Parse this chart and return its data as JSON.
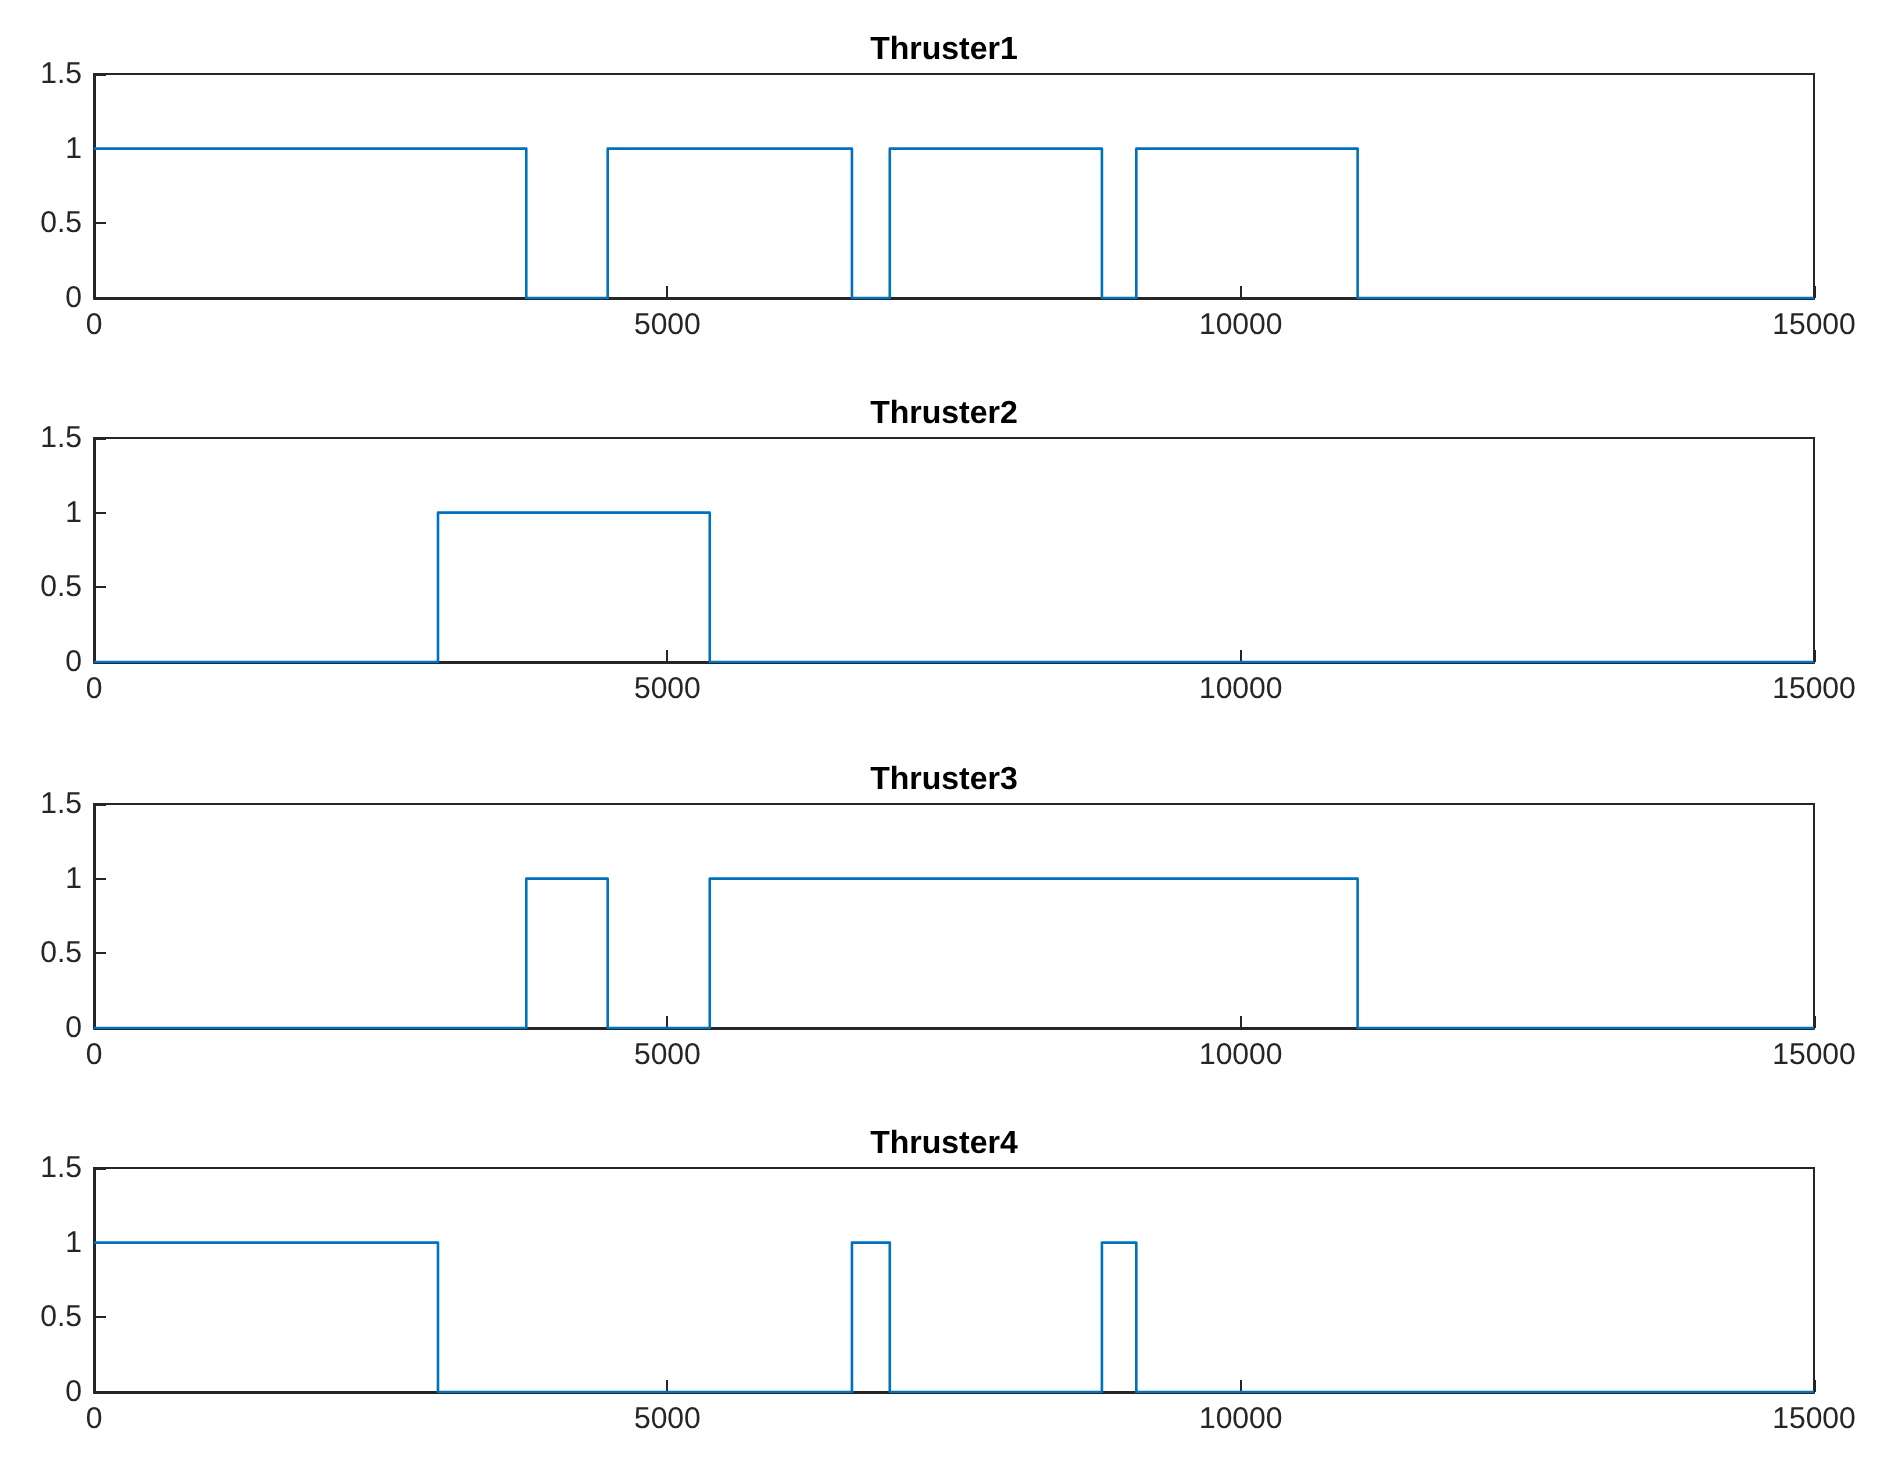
{
  "chart_data": [
    {
      "type": "step",
      "title": "Thruster1",
      "marker": "none",
      "xlim": [
        0,
        15000
      ],
      "xticks": [
        0,
        5000,
        10000,
        15000
      ],
      "ylim": [
        0,
        1.5
      ],
      "yticks": [
        0,
        0.5,
        1,
        1.5
      ],
      "series": [
        {
          "color": "#0072bd",
          "x": [
            0,
            3770,
            4480,
            6610,
            6940,
            8790,
            9090,
            11020,
            15000
          ],
          "values": [
            1,
            0,
            1,
            0,
            1,
            0,
            1,
            0,
            0
          ]
        }
      ]
    },
    {
      "type": "step",
      "title": "Thruster2",
      "marker": "none",
      "xlim": [
        0,
        15000
      ],
      "xticks": [
        0,
        5000,
        10000,
        15000
      ],
      "ylim": [
        0,
        1.5
      ],
      "yticks": [
        0,
        0.5,
        1,
        1.5
      ],
      "series": [
        {
          "color": "#0072bd",
          "x": [
            0,
            3000,
            5370,
            15000
          ],
          "values": [
            0,
            1,
            0,
            0
          ]
        }
      ]
    },
    {
      "type": "step",
      "title": "Thruster3",
      "marker": "none",
      "xlim": [
        0,
        15000
      ],
      "xticks": [
        0,
        5000,
        10000,
        15000
      ],
      "ylim": [
        0,
        1.5
      ],
      "yticks": [
        0,
        0.5,
        1,
        1.5
      ],
      "series": [
        {
          "color": "#0072bd",
          "x": [
            0,
            3770,
            4480,
            5370,
            11020,
            15000
          ],
          "values": [
            0,
            1,
            0,
            1,
            0,
            0
          ]
        }
      ]
    },
    {
      "type": "step",
      "title": "Thruster4",
      "marker": "none",
      "xlim": [
        0,
        15000
      ],
      "xticks": [
        0,
        5000,
        10000,
        15000
      ],
      "ylim": [
        0,
        1.5
      ],
      "yticks": [
        0,
        0.5,
        1,
        1.5
      ],
      "series": [
        {
          "color": "#0072bd",
          "x": [
            0,
            3000,
            6610,
            6940,
            8790,
            9090,
            15000
          ],
          "values": [
            1,
            0,
            1,
            0,
            1,
            0,
            0
          ]
        }
      ]
    }
  ]
}
